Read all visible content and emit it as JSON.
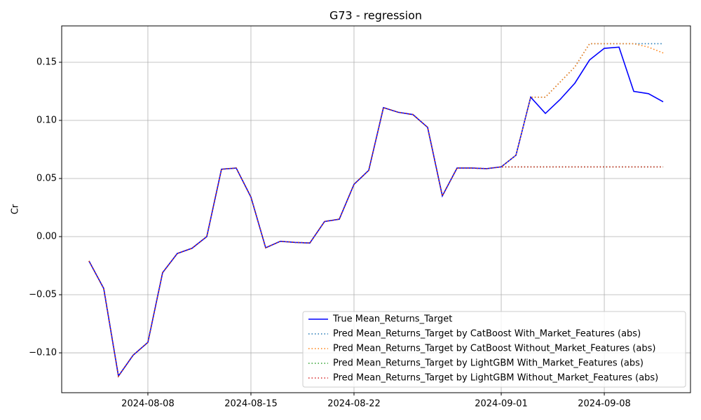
{
  "chart_data": {
    "type": "line",
    "title": "G73 - regression",
    "ylabel": "Cr",
    "x": [
      "2024-08-04",
      "2024-08-05",
      "2024-08-06",
      "2024-08-07",
      "2024-08-08",
      "2024-08-09",
      "2024-08-10",
      "2024-08-11",
      "2024-08-12",
      "2024-08-13",
      "2024-08-14",
      "2024-08-15",
      "2024-08-16",
      "2024-08-17",
      "2024-08-18",
      "2024-08-19",
      "2024-08-20",
      "2024-08-21",
      "2024-08-22",
      "2024-08-23",
      "2024-08-24",
      "2024-08-25",
      "2024-08-26",
      "2024-08-27",
      "2024-08-28",
      "2024-08-29",
      "2024-08-30",
      "2024-08-31",
      "2024-09-01",
      "2024-09-02",
      "2024-09-03",
      "2024-09-04",
      "2024-09-05",
      "2024-09-06",
      "2024-09-07",
      "2024-09-08",
      "2024-09-09",
      "2024-09-10",
      "2024-09-11",
      "2024-09-12"
    ],
    "series": [
      {
        "name": "True Mean_Returns_Target",
        "color": "#0000ff",
        "style": "solid",
        "values": [
          -0.021,
          -0.0446,
          -0.12,
          -0.102,
          -0.091,
          -0.031,
          -0.0145,
          -0.01,
          0.0,
          0.058,
          0.059,
          0.034,
          -0.0096,
          -0.004,
          -0.005,
          -0.0055,
          0.013,
          0.015,
          0.045,
          0.057,
          0.111,
          0.107,
          0.105,
          0.094,
          0.035,
          0.059,
          0.059,
          0.0585,
          0.06,
          0.07,
          0.12,
          0.106,
          0.118,
          0.132,
          0.152,
          0.162,
          0.163,
          0.125,
          0.123,
          0.116
        ]
      },
      {
        "name": "Pred Mean_Returns_Target by CatBoost With_Market_Features (abs)",
        "color": "#1f77b4",
        "style": "dotted",
        "values": [
          -0.021,
          -0.0446,
          -0.12,
          -0.102,
          -0.091,
          -0.031,
          -0.0145,
          -0.01,
          0.0,
          0.058,
          0.059,
          0.034,
          -0.0096,
          -0.004,
          -0.005,
          -0.0055,
          0.013,
          0.015,
          0.045,
          0.057,
          0.111,
          0.107,
          0.105,
          0.094,
          0.035,
          0.059,
          0.059,
          0.0585,
          0.06,
          0.07,
          0.12,
          0.12,
          0.133,
          0.146,
          0.166,
          0.166,
          0.166,
          0.166,
          0.166,
          0.166
        ]
      },
      {
        "name": "Pred Mean_Returns_Target by CatBoost Without_Market_Features (abs)",
        "color": "#ff7f0e",
        "style": "dotted",
        "values": [
          -0.021,
          -0.0446,
          -0.12,
          -0.102,
          -0.091,
          -0.031,
          -0.0145,
          -0.01,
          0.0,
          0.058,
          0.059,
          0.034,
          -0.0096,
          -0.004,
          -0.005,
          -0.0055,
          0.013,
          0.015,
          0.045,
          0.057,
          0.111,
          0.107,
          0.105,
          0.094,
          0.035,
          0.059,
          0.059,
          0.0585,
          0.06,
          0.07,
          0.12,
          0.12,
          0.133,
          0.146,
          0.166,
          0.166,
          0.166,
          0.166,
          0.163,
          0.158
        ]
      },
      {
        "name": "Pred Mean_Returns_Target by LightGBM With_Market_Features (abs)",
        "color": "#2ca02c",
        "style": "dotted",
        "values": [
          -0.021,
          -0.0446,
          -0.12,
          -0.102,
          -0.091,
          -0.031,
          -0.0145,
          -0.01,
          0.0,
          0.058,
          0.059,
          0.034,
          -0.0096,
          -0.004,
          -0.005,
          -0.0055,
          0.013,
          0.015,
          0.045,
          0.057,
          0.111,
          0.107,
          0.105,
          0.094,
          0.035,
          0.059,
          0.059,
          0.0585,
          0.06,
          0.06,
          0.06,
          0.06,
          0.06,
          0.06,
          0.06,
          0.06,
          0.06,
          0.06,
          0.06,
          0.06
        ]
      },
      {
        "name": "Pred Mean_Returns_Target by LightGBM Without_Market_Features (abs)",
        "color": "#d62728",
        "style": "dotted",
        "values": [
          -0.021,
          -0.0446,
          -0.12,
          -0.102,
          -0.091,
          -0.031,
          -0.0145,
          -0.01,
          0.0,
          0.058,
          0.059,
          0.034,
          -0.0096,
          -0.004,
          -0.005,
          -0.0055,
          0.013,
          0.015,
          0.045,
          0.057,
          0.111,
          0.107,
          0.105,
          0.094,
          0.035,
          0.059,
          0.059,
          0.0585,
          0.06,
          0.06,
          0.06,
          0.06,
          0.06,
          0.06,
          0.06,
          0.06,
          0.06,
          0.06,
          0.06,
          0.06
        ]
      }
    ],
    "xlim": [
      "2024-08-02T03:30:00Z",
      "2024-09-13T20:30:00Z"
    ],
    "xticks": [
      "2024-08-08",
      "2024-08-15",
      "2024-08-22",
      "2024-09-01",
      "2024-09-08"
    ],
    "ylim": [
      -0.1343,
      0.1813
    ],
    "yticks": [
      {
        "value": -0.1,
        "label": "−0.10"
      },
      {
        "value": -0.05,
        "label": "−0.05"
      },
      {
        "value": 0,
        "label": "0.00"
      },
      {
        "value": 0.05,
        "label": "0.05"
      },
      {
        "value": 0.1,
        "label": "0.10"
      },
      {
        "value": 0.15,
        "label": "0.15"
      }
    ],
    "grid": true,
    "legend": "lower right"
  }
}
